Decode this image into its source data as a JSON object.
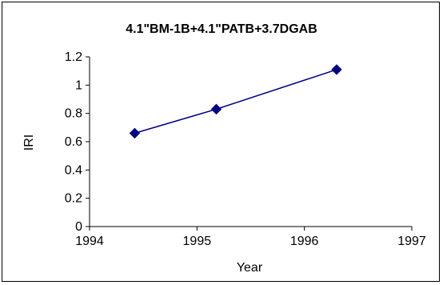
{
  "chart_data": {
    "type": "scatter",
    "title": "4.1\"BM-1B+4.1\"PATB+3.7DGAB",
    "xlabel": "Year",
    "ylabel": "IRI",
    "xlim": [
      1994,
      1997
    ],
    "ylim": [
      0,
      1.2
    ],
    "x_ticks": [
      "1994",
      "1995",
      "1996",
      "1997"
    ],
    "y_ticks": [
      "0",
      "0.2",
      "0.4",
      "0.6",
      "0.8",
      "1",
      "1.2"
    ],
    "grid": false,
    "legend": "none",
    "marker": "diamond",
    "color": "#000080",
    "series": [
      {
        "x": [
          1994.42,
          1995.18,
          1996.3
        ],
        "y": [
          0.66,
          0.83,
          1.11
        ]
      }
    ]
  }
}
